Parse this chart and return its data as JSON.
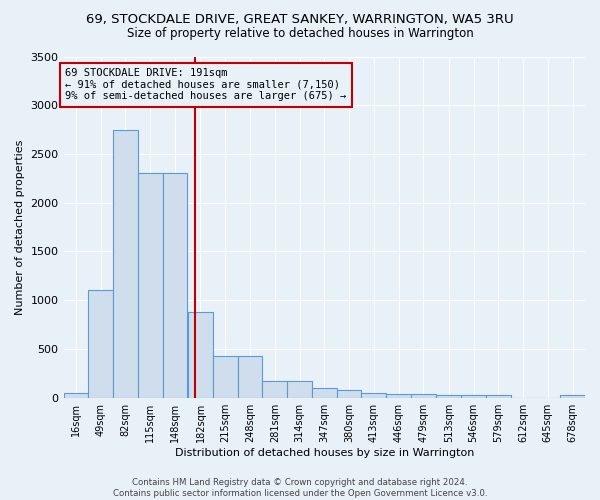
{
  "title": "69, STOCKDALE DRIVE, GREAT SANKEY, WARRINGTON, WA5 3RU",
  "subtitle": "Size of property relative to detached houses in Warrington",
  "xlabel": "Distribution of detached houses by size in Warrington",
  "ylabel": "Number of detached properties",
  "bin_labels": [
    "16sqm",
    "49sqm",
    "82sqm",
    "115sqm",
    "148sqm",
    "182sqm",
    "215sqm",
    "248sqm",
    "281sqm",
    "314sqm",
    "347sqm",
    "380sqm",
    "413sqm",
    "446sqm",
    "479sqm",
    "513sqm",
    "546sqm",
    "579sqm",
    "612sqm",
    "645sqm",
    "678sqm"
  ],
  "bar_values": [
    50,
    1100,
    2750,
    2300,
    2300,
    880,
    430,
    430,
    170,
    170,
    100,
    80,
    50,
    40,
    40,
    30,
    30,
    30,
    0,
    0,
    30
  ],
  "bar_color": "#cfdded",
  "bar_edge_color": "#5b9bd5",
  "vline_color": "#c00000",
  "annotation_text": "69 STOCKDALE DRIVE: 191sqm\n← 91% of detached houses are smaller (7,150)\n9% of semi-detached houses are larger (675) →",
  "ylim": [
    0,
    3500
  ],
  "yticks": [
    0,
    500,
    1000,
    1500,
    2000,
    2500,
    3000,
    3500
  ],
  "footer": "Contains HM Land Registry data © Crown copyright and database right 2024.\nContains public sector information licensed under the Open Government Licence v3.0.",
  "bg_color": "#e8f0f8",
  "grid_color": "#ffffff",
  "property_sqm": 191,
  "bin_width": 33,
  "bin_starts": [
    16,
    49,
    82,
    115,
    148,
    182,
    215,
    248,
    281,
    314,
    347,
    380,
    413,
    446,
    479,
    513,
    546,
    579,
    612,
    645,
    678
  ]
}
